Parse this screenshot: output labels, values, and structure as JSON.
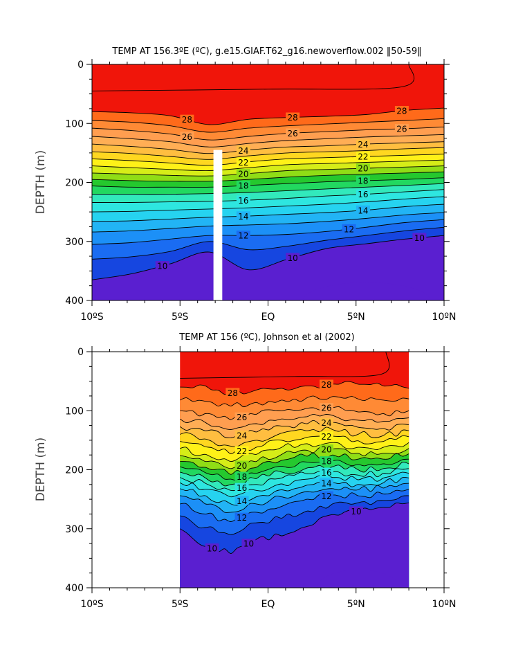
{
  "chart_data": [
    {
      "type": "heatmap",
      "title": "TEMP AT 156.3ºE (ºC), g.e15.GIAF.T62_g16.newoverflow.002 ‖50-59‖",
      "ylabel": "DEPTH (m)",
      "xlabel": "",
      "xlim": [
        -10,
        10
      ],
      "ylim": [
        400,
        0
      ],
      "x_ticks": [
        "10ºS",
        "5ºS",
        "EQ",
        "5ºN",
        "10ºN"
      ],
      "y_ticks": [
        "0",
        "100",
        "200",
        "300",
        "400"
      ],
      "data_range": [
        -10,
        10
      ],
      "gap_band": [
        -3.1,
        -2.6
      ],
      "contour_interval": 1,
      "contour_labels": [
        "28",
        "28",
        "28",
        "26",
        "26",
        "26",
        "24",
        "24",
        "22",
        "22",
        "20",
        "20",
        "18",
        "18",
        "16",
        "16",
        "14",
        "14",
        "12",
        "12",
        "10",
        "10",
        "10"
      ],
      "isotherms": [
        {
          "t": 28,
          "depth": [
            80,
            82,
            87,
            102,
            93,
            90,
            88,
            85,
            78,
            74
          ]
        },
        {
          "t": 27,
          "depth": [
            95,
            98,
            104,
            115,
            108,
            104,
            101,
            98,
            95,
            92
          ]
        },
        {
          "t": 26,
          "depth": [
            108,
            112,
            118,
            128,
            122,
            117,
            114,
            111,
            109,
            106
          ]
        },
        {
          "t": 25,
          "depth": [
            122,
            126,
            131,
            140,
            134,
            129,
            126,
            123,
            121,
            119
          ]
        },
        {
          "t": 24,
          "depth": [
            135,
            139,
            144,
            151,
            145,
            140,
            138,
            135,
            133,
            131
          ]
        },
        {
          "t": 23,
          "depth": [
            148,
            151,
            156,
            161,
            155,
            150,
            148,
            146,
            143,
            141
          ]
        },
        {
          "t": 22,
          "depth": [
            160,
            163,
            167,
            171,
            165,
            160,
            158,
            156,
            154,
            152
          ]
        },
        {
          "t": 21,
          "depth": [
            172,
            175,
            178,
            180,
            175,
            170,
            168,
            166,
            164,
            162
          ]
        },
        {
          "t": 20,
          "depth": [
            184,
            186,
            188,
            189,
            185,
            180,
            178,
            176,
            174,
            172
          ]
        },
        {
          "t": 19,
          "depth": [
            195,
            197,
            198,
            198,
            195,
            191,
            188,
            186,
            184,
            182
          ]
        },
        {
          "t": 18,
          "depth": [
            206,
            208,
            208,
            208,
            205,
            202,
            199,
            197,
            195,
            192
          ]
        },
        {
          "t": 17,
          "depth": [
            220,
            220,
            220,
            219,
            217,
            214,
            211,
            208,
            205,
            202
          ]
        },
        {
          "t": 16,
          "depth": [
            234,
            234,
            233,
            232,
            230,
            227,
            223,
            220,
            216,
            212
          ]
        },
        {
          "t": 15,
          "depth": [
            250,
            249,
            247,
            245,
            243,
            240,
            237,
            233,
            228,
            224
          ]
        },
        {
          "t": 14,
          "depth": [
            266,
            265,
            262,
            259,
            257,
            254,
            251,
            247,
            241,
            237
          ]
        },
        {
          "t": 13,
          "depth": [
            284,
            282,
            278,
            274,
            272,
            270,
            266,
            261,
            255,
            251
          ]
        },
        {
          "t": 12,
          "depth": [
            305,
            302,
            296,
            290,
            290,
            288,
            283,
            276,
            268,
            263
          ]
        },
        {
          "t": 11,
          "depth": [
            330,
            326,
            317,
            300,
            314,
            308,
            298,
            290,
            282,
            276
          ]
        },
        {
          "t": 10,
          "depth": [
            365,
            355,
            338,
            318,
            348,
            330,
            312,
            304,
            296,
            290
          ]
        }
      ]
    },
    {
      "type": "heatmap",
      "title": "TEMP AT 156 (ºC), Johnson et al (2002)",
      "ylabel": "DEPTH (m)",
      "xlabel": "",
      "xlim": [
        -10,
        10
      ],
      "ylim": [
        400,
        0
      ],
      "x_ticks": [
        "10ºS",
        "5ºS",
        "EQ",
        "5ºN",
        "10ºN"
      ],
      "y_ticks": [
        "0",
        "100",
        "200",
        "300",
        "400"
      ],
      "data_range": [
        -5,
        8
      ],
      "contour_interval": 1,
      "contour_labels": [
        "28",
        "28",
        "26",
        "26",
        "24",
        "24",
        "22",
        "22",
        "20",
        "20",
        "18",
        "18",
        "16",
        "16",
        "14",
        "14",
        "12",
        "12",
        "10",
        "10",
        "10"
      ],
      "isotherms": [
        {
          "t": 28,
          "depth": [
            60,
            58,
            70,
            65,
            62,
            58,
            55,
            55,
            58,
            62
          ]
        },
        {
          "t": 27,
          "depth": [
            82,
            84,
            92,
            86,
            82,
            78,
            76,
            80,
            82,
            80
          ]
        },
        {
          "t": 26,
          "depth": [
            100,
            105,
            115,
            106,
            100,
            96,
            95,
            102,
            105,
            100
          ]
        },
        {
          "t": 25,
          "depth": [
            114,
            120,
            132,
            122,
            114,
            110,
            108,
            116,
            118,
            112
          ]
        },
        {
          "t": 24,
          "depth": [
            127,
            134,
            146,
            136,
            126,
            122,
            120,
            128,
            130,
            124
          ]
        },
        {
          "t": 23,
          "depth": [
            140,
            148,
            160,
            150,
            138,
            134,
            132,
            140,
            142,
            134
          ]
        },
        {
          "t": 22,
          "depth": [
            152,
            161,
            173,
            162,
            150,
            145,
            143,
            151,
            152,
            144
          ]
        },
        {
          "t": 21,
          "depth": [
            164,
            174,
            186,
            174,
            162,
            156,
            154,
            162,
            162,
            154
          ]
        },
        {
          "t": 20,
          "depth": [
            176,
            186,
            198,
            186,
            174,
            167,
            165,
            172,
            172,
            164
          ]
        },
        {
          "t": 19,
          "depth": [
            186,
            196,
            208,
            196,
            184,
            177,
            175,
            182,
            182,
            173
          ]
        },
        {
          "t": 18,
          "depth": [
            195,
            205,
            216,
            206,
            194,
            187,
            185,
            191,
            190,
            182
          ]
        },
        {
          "t": 17,
          "depth": [
            204,
            214,
            225,
            215,
            204,
            197,
            195,
            200,
            198,
            190
          ]
        },
        {
          "t": 16,
          "depth": [
            213,
            223,
            235,
            225,
            214,
            207,
            204,
            209,
            206,
            198
          ]
        },
        {
          "t": 15,
          "depth": [
            222,
            233,
            246,
            235,
            224,
            216,
            213,
            217,
            214,
            206
          ]
        },
        {
          "t": 14,
          "depth": [
            232,
            244,
            258,
            246,
            234,
            226,
            222,
            225,
            222,
            214
          ]
        },
        {
          "t": 13,
          "depth": [
            244,
            258,
            272,
            258,
            246,
            237,
            232,
            234,
            231,
            223
          ]
        },
        {
          "t": 12,
          "depth": [
            258,
            275,
            288,
            272,
            262,
            250,
            243,
            244,
            241,
            233
          ]
        },
        {
          "t": 11,
          "depth": [
            278,
            298,
            310,
            290,
            282,
            270,
            258,
            256,
            252,
            244
          ]
        },
        {
          "t": 10,
          "depth": [
            300,
            330,
            342,
            318,
            312,
            296,
            276,
            270,
            264,
            256
          ]
        }
      ]
    }
  ]
}
